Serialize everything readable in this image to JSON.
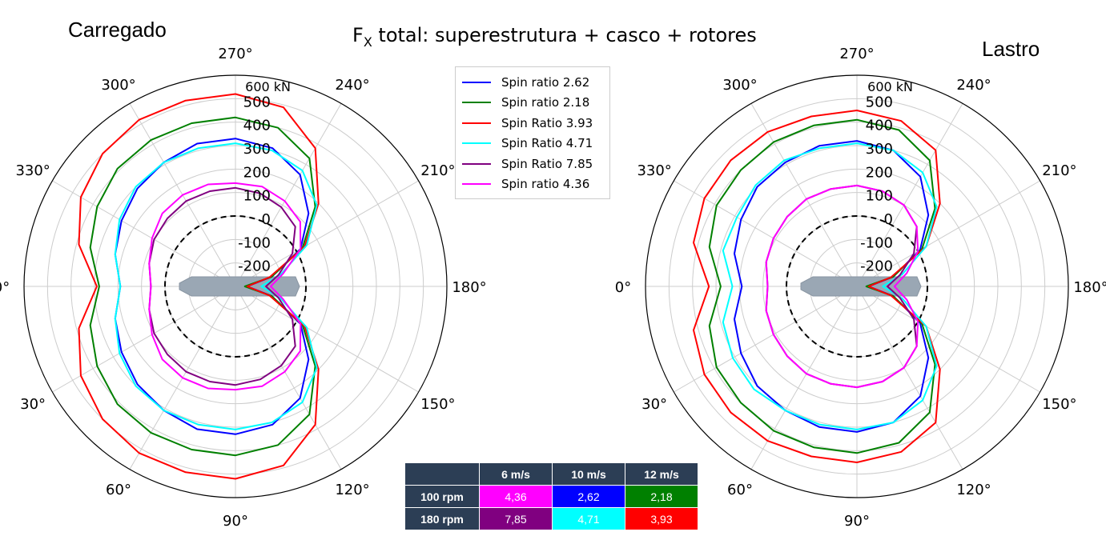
{
  "title_prefix": "F",
  "title_sub": "X",
  "title_rest": " total: superestrutura + casco + rotores",
  "left_label": "Carregado",
  "right_label": "Lastro",
  "radial_unit": "600 kN",
  "radial_ticks": [
    "500",
    "400",
    "300",
    "200",
    "100",
    "0",
    "-100",
    "-200"
  ],
  "angle_labels": [
    "0°",
    "30°",
    "60°",
    "90°",
    "120°",
    "150°",
    "180°",
    "210°",
    "240°",
    "270°",
    "300°",
    "330°"
  ],
  "legend": [
    {
      "name": "Spin ratio 2.62",
      "color": "#0000ff"
    },
    {
      "name": "Spin ratio 2.18",
      "color": "#008000"
    },
    {
      "name": "Spin Ratio 3.93",
      "color": "#ff0000"
    },
    {
      "name": "Spin Ratio 4.71",
      "color": "#00ffff"
    },
    {
      "name": "Spin Ratio 7.85",
      "color": "#800080"
    },
    {
      "name": "Spin ratio 4.36",
      "color": "#ff00ff"
    }
  ],
  "table": {
    "headers": [
      "6 m/s",
      "10 m/s",
      "12 m/s"
    ],
    "rows": [
      {
        "label": "100 rpm",
        "cells": [
          {
            "v": "4,36",
            "c": "#ff00ff"
          },
          {
            "v": "2,62",
            "c": "#0000ff"
          },
          {
            "v": "2,18",
            "c": "#008000"
          }
        ]
      },
      {
        "label": "180 rpm",
        "cells": [
          {
            "v": "7,85",
            "c": "#800080"
          },
          {
            "v": "4,71",
            "c": "#00ffff"
          },
          {
            "v": "3,93",
            "c": "#ff0000"
          }
        ]
      }
    ]
  },
  "chart_data": [
    {
      "type": "polar",
      "title": "Carregado",
      "rlim": [
        -300,
        600
      ],
      "radial_unit": "kN",
      "angle_direction": "0° left, 90° bottom, 180° right, 270° top",
      "zero_reference": "dashed circle at 0 kN",
      "series": [
        {
          "name": "Spin ratio 2.62",
          "color": "#0000ff",
          "angles": [
            0,
            15,
            30,
            45,
            60,
            75,
            90,
            105,
            120,
            135,
            150,
            165,
            180,
            195,
            210,
            225,
            240,
            255,
            270,
            285,
            300,
            315,
            330,
            345
          ],
          "values": [
            190,
            230,
            260,
            290,
            310,
            330,
            330,
            310,
            250,
            140,
            20,
            -140,
            -250,
            -140,
            20,
            140,
            250,
            310,
            330,
            330,
            310,
            290,
            260,
            230
          ]
        },
        {
          "name": "Spin ratio 2.18",
          "color": "#008000",
          "angles": [
            0,
            15,
            30,
            45,
            60,
            75,
            90,
            105,
            120,
            135,
            150,
            165,
            180,
            195,
            210,
            225,
            240,
            255,
            270,
            285,
            300,
            315,
            330,
            345
          ],
          "values": [
            280,
            340,
            380,
            410,
            420,
            420,
            420,
            400,
            330,
            180,
            30,
            -140,
            -260,
            -140,
            30,
            180,
            330,
            400,
            420,
            420,
            420,
            410,
            380,
            340
          ]
        },
        {
          "name": "Spin Ratio 3.93",
          "color": "#ff0000",
          "angles": [
            0,
            15,
            30,
            45,
            60,
            75,
            90,
            105,
            120,
            135,
            150,
            165,
            180,
            195,
            210,
            225,
            240,
            255,
            270,
            285,
            300,
            315,
            330,
            345
          ],
          "values": [
            290,
            390,
            460,
            500,
            520,
            520,
            520,
            490,
            380,
            200,
            40,
            -150,
            -250,
            -150,
            40,
            200,
            380,
            490,
            520,
            520,
            520,
            500,
            460,
            390
          ]
        },
        {
          "name": "Spin Ratio 4.71",
          "color": "#00ffff",
          "angles": [
            0,
            15,
            30,
            45,
            60,
            75,
            90,
            105,
            120,
            135,
            150,
            165,
            180,
            195,
            210,
            225,
            240,
            255,
            270,
            285,
            300,
            315,
            330,
            345
          ],
          "values": [
            190,
            230,
            270,
            300,
            310,
            310,
            310,
            300,
            270,
            190,
            50,
            -100,
            -190,
            -100,
            50,
            190,
            270,
            300,
            310,
            310,
            310,
            300,
            270,
            230
          ]
        },
        {
          "name": "Spin Ratio 7.85",
          "color": "#800080",
          "angles": [
            0,
            15,
            30,
            45,
            60,
            75,
            90,
            105,
            120,
            135,
            150,
            165,
            180,
            195,
            210,
            225,
            240,
            255,
            270,
            285,
            300,
            315,
            330,
            345
          ],
          "values": [
            60,
            80,
            100,
            110,
            120,
            120,
            120,
            110,
            90,
            60,
            -20,
            -110,
            -170,
            -110,
            -20,
            60,
            90,
            110,
            120,
            120,
            120,
            110,
            100,
            80
          ]
        },
        {
          "name": "Spin ratio 4.36",
          "color": "#ff00ff",
          "angles": [
            0,
            15,
            30,
            45,
            60,
            75,
            90,
            105,
            120,
            135,
            150,
            165,
            180,
            195,
            210,
            225,
            240,
            255,
            270,
            285,
            300,
            315,
            330,
            345
          ],
          "values": [
            60,
            80,
            110,
            140,
            150,
            150,
            140,
            140,
            120,
            90,
            20,
            -90,
            -150,
            -90,
            20,
            90,
            120,
            140,
            140,
            150,
            150,
            140,
            110,
            80
          ]
        }
      ]
    },
    {
      "type": "polar",
      "title": "Lastro",
      "rlim": [
        -300,
        600
      ],
      "radial_unit": "kN",
      "angle_direction": "0° left, 90° bottom, 180° right, 270° top",
      "zero_reference": "dashed circle at 0 kN",
      "series": [
        {
          "name": "Spin ratio 2.62",
          "color": "#0000ff",
          "angles": [
            0,
            15,
            30,
            45,
            60,
            75,
            90,
            105,
            120,
            135,
            150,
            165,
            180,
            195,
            210,
            225,
            240,
            255,
            270,
            285,
            300,
            315,
            330,
            345
          ],
          "values": [
            190,
            240,
            270,
            300,
            310,
            320,
            320,
            300,
            240,
            130,
            10,
            -140,
            -250,
            -140,
            10,
            130,
            240,
            300,
            320,
            320,
            310,
            300,
            270,
            240
          ]
        },
        {
          "name": "Spin ratio 2.18",
          "color": "#008000",
          "angles": [
            0,
            15,
            30,
            45,
            60,
            75,
            90,
            105,
            120,
            135,
            150,
            165,
            180,
            195,
            210,
            225,
            240,
            255,
            270,
            285,
            300,
            315,
            330,
            345
          ],
          "values": [
            280,
            350,
            390,
            400,
            410,
            410,
            410,
            390,
            320,
            170,
            20,
            -140,
            -260,
            -140,
            20,
            170,
            320,
            390,
            410,
            410,
            410,
            400,
            390,
            350
          ]
        },
        {
          "name": "Spin Ratio 3.93",
          "color": "#ff0000",
          "angles": [
            0,
            15,
            30,
            45,
            60,
            75,
            90,
            105,
            120,
            135,
            150,
            165,
            180,
            195,
            210,
            225,
            240,
            255,
            270,
            285,
            300,
            315,
            330,
            345
          ],
          "values": [
            330,
            420,
            450,
            460,
            460,
            450,
            450,
            430,
            370,
            200,
            40,
            -150,
            -250,
            -150,
            40,
            200,
            370,
            430,
            450,
            450,
            460,
            460,
            450,
            420
          ]
        },
        {
          "name": "Spin Ratio 4.71",
          "color": "#00ffff",
          "angles": [
            0,
            15,
            30,
            45,
            60,
            75,
            90,
            105,
            120,
            135,
            150,
            165,
            180,
            195,
            210,
            225,
            240,
            255,
            270,
            285,
            300,
            315,
            330,
            345
          ],
          "values": [
            230,
            290,
            310,
            320,
            310,
            310,
            310,
            300,
            260,
            180,
            40,
            -100,
            -190,
            -100,
            40,
            180,
            260,
            300,
            310,
            310,
            320,
            310,
            290,
            290
          ]
        },
        {
          "name": "Spin Ratio 7.85",
          "color": "#800080",
          "angles": [
            0,
            15,
            30,
            45,
            60,
            75,
            90,
            105,
            120,
            135,
            150,
            165,
            180,
            195,
            210,
            225,
            240,
            255,
            270,
            285,
            300,
            315,
            330,
            345
          ],
          "values": [
            80,
            100,
            110,
            120,
            130,
            130,
            130,
            120,
            100,
            60,
            -20,
            -110,
            -170,
            -110,
            -20,
            60,
            100,
            120,
            130,
            130,
            130,
            120,
            110,
            100
          ]
        },
        {
          "name": "Spin ratio 4.36",
          "color": "#ff00ff",
          "angles": [
            0,
            15,
            30,
            45,
            60,
            75,
            90,
            105,
            120,
            135,
            150,
            165,
            180,
            195,
            210,
            225,
            240,
            255,
            270,
            285,
            300,
            315,
            330,
            345
          ],
          "values": [
            80,
            100,
            110,
            120,
            130,
            130,
            130,
            120,
            100,
            60,
            0,
            -80,
            -140,
            -80,
            0,
            60,
            100,
            120,
            130,
            130,
            130,
            120,
            110,
            100
          ]
        }
      ]
    }
  ]
}
